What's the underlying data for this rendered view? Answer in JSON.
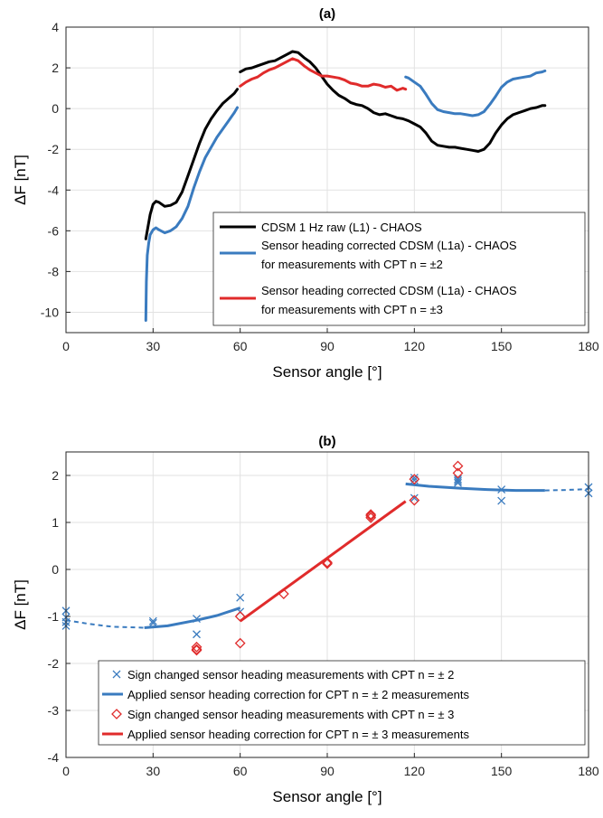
{
  "chart_data": [
    {
      "type": "line",
      "title": "(a)",
      "xlabel": "Sensor angle [°]",
      "ylabel": "ΔF [nT]",
      "xlim": [
        0,
        180
      ],
      "ylim": [
        -11,
        4
      ],
      "xticks": [
        0,
        30,
        60,
        90,
        120,
        150,
        180
      ],
      "yticks": [
        4,
        2,
        0,
        -2,
        -4,
        -6,
        -8,
        -10
      ],
      "grid": true,
      "legend_position": "bottom-right",
      "legend_entries": [
        [
          "CDSM 1 Hz raw (L1) - CHAOS"
        ],
        [
          "Sensor heading corrected CDSM (L1a) - CHAOS",
          "for measurements with CPT n = ±2"
        ],
        [
          "Sensor heading corrected CDSM (L1a) - CHAOS",
          "for measurements with CPT n = ±3"
        ]
      ],
      "series": [
        {
          "color": "#000000",
          "segments": [
            [
              [
                27.5,
                -6.4
              ],
              [
                28,
                -6.0
              ],
              [
                28.5,
                -5.6
              ],
              [
                29,
                -5.2
              ],
              [
                30,
                -4.7
              ],
              [
                31,
                -4.55
              ],
              [
                32,
                -4.6
              ],
              [
                34,
                -4.8
              ],
              [
                36,
                -4.75
              ],
              [
                38,
                -4.6
              ],
              [
                40,
                -4.1
              ],
              [
                42,
                -3.3
              ],
              [
                44,
                -2.5
              ],
              [
                46,
                -1.7
              ],
              [
                48,
                -1.0
              ],
              [
                50,
                -0.5
              ],
              [
                52,
                -0.1
              ],
              [
                54,
                0.25
              ],
              [
                56,
                0.5
              ],
              [
                58,
                0.75
              ],
              [
                59,
                0.95
              ]
            ],
            [
              [
                60,
                1.8
              ],
              [
                62,
                1.95
              ],
              [
                64,
                2.0
              ],
              [
                66,
                2.1
              ],
              [
                68,
                2.2
              ],
              [
                70,
                2.3
              ],
              [
                72,
                2.35
              ],
              [
                74,
                2.5
              ],
              [
                76,
                2.65
              ],
              [
                78,
                2.8
              ],
              [
                80,
                2.75
              ],
              [
                82,
                2.5
              ],
              [
                84,
                2.3
              ],
              [
                86,
                2.0
              ],
              [
                88,
                1.6
              ],
              [
                90,
                1.2
              ],
              [
                92,
                0.9
              ],
              [
                94,
                0.65
              ],
              [
                96,
                0.5
              ],
              [
                98,
                0.3
              ],
              [
                100,
                0.2
              ],
              [
                102,
                0.15
              ],
              [
                104,
                0.0
              ],
              [
                106,
                -0.2
              ],
              [
                108,
                -0.3
              ],
              [
                110,
                -0.25
              ],
              [
                112,
                -0.35
              ],
              [
                114,
                -0.45
              ],
              [
                116,
                -0.5
              ],
              [
                118,
                -0.6
              ],
              [
                120,
                -0.75
              ],
              [
                122,
                -0.9
              ],
              [
                124,
                -1.2
              ],
              [
                126,
                -1.6
              ],
              [
                128,
                -1.8
              ],
              [
                130,
                -1.85
              ],
              [
                132,
                -1.9
              ],
              [
                134,
                -1.9
              ],
              [
                136,
                -1.95
              ],
              [
                138,
                -2.0
              ],
              [
                140,
                -2.05
              ],
              [
                142,
                -2.1
              ],
              [
                144,
                -2.0
              ],
              [
                146,
                -1.7
              ],
              [
                148,
                -1.2
              ],
              [
                150,
                -0.8
              ],
              [
                152,
                -0.5
              ],
              [
                154,
                -0.3
              ],
              [
                156,
                -0.2
              ],
              [
                158,
                -0.1
              ],
              [
                160,
                0.0
              ],
              [
                162,
                0.05
              ],
              [
                164,
                0.15
              ],
              [
                165,
                0.15
              ]
            ]
          ]
        },
        {
          "color": "#3a7bbf",
          "segments": [
            [
              [
                27.5,
                -10.4
              ],
              [
                27.7,
                -8.5
              ],
              [
                28,
                -7.2
              ],
              [
                28.5,
                -6.6
              ],
              [
                29,
                -6.2
              ],
              [
                30,
                -5.95
              ],
              [
                31,
                -5.85
              ],
              [
                32,
                -5.95
              ],
              [
                34,
                -6.1
              ],
              [
                36,
                -6.0
              ],
              [
                38,
                -5.8
              ],
              [
                40,
                -5.4
              ],
              [
                42,
                -4.8
              ],
              [
                44,
                -3.9
              ],
              [
                46,
                -3.1
              ],
              [
                48,
                -2.4
              ],
              [
                50,
                -1.9
              ],
              [
                52,
                -1.4
              ],
              [
                54,
                -1.0
              ],
              [
                56,
                -0.6
              ],
              [
                58,
                -0.2
              ],
              [
                59,
                0.05
              ]
            ],
            [
              [
                117,
                1.55
              ],
              [
                118,
                1.5
              ],
              [
                120,
                1.3
              ],
              [
                122,
                1.1
              ],
              [
                124,
                0.7
              ],
              [
                126,
                0.25
              ],
              [
                128,
                -0.05
              ],
              [
                130,
                -0.15
              ],
              [
                132,
                -0.2
              ],
              [
                134,
                -0.25
              ],
              [
                136,
                -0.25
              ],
              [
                138,
                -0.3
              ],
              [
                140,
                -0.35
              ],
              [
                142,
                -0.3
              ],
              [
                144,
                -0.15
              ],
              [
                146,
                0.2
              ],
              [
                148,
                0.6
              ],
              [
                150,
                1.05
              ],
              [
                152,
                1.3
              ],
              [
                154,
                1.45
              ],
              [
                156,
                1.5
              ],
              [
                158,
                1.55
              ],
              [
                160,
                1.6
              ],
              [
                162,
                1.75
              ],
              [
                164,
                1.8
              ],
              [
                165,
                1.85
              ]
            ]
          ]
        },
        {
          "color": "#e02b2b",
          "segments": [
            [
              [
                60,
                1.1
              ],
              [
                62,
                1.3
              ],
              [
                64,
                1.45
              ],
              [
                66,
                1.55
              ],
              [
                68,
                1.75
              ],
              [
                70,
                1.9
              ],
              [
                72,
                2.0
              ],
              [
                74,
                2.15
              ],
              [
                76,
                2.3
              ],
              [
                78,
                2.45
              ],
              [
                80,
                2.35
              ],
              [
                82,
                2.1
              ],
              [
                84,
                1.9
              ],
              [
                86,
                1.75
              ],
              [
                88,
                1.6
              ],
              [
                90,
                1.6
              ],
              [
                92,
                1.55
              ],
              [
                94,
                1.5
              ],
              [
                96,
                1.4
              ],
              [
                98,
                1.25
              ],
              [
                100,
                1.2
              ],
              [
                102,
                1.1
              ],
              [
                104,
                1.1
              ],
              [
                106,
                1.2
              ],
              [
                108,
                1.15
              ],
              [
                110,
                1.05
              ],
              [
                112,
                1.1
              ],
              [
                114,
                0.9
              ],
              [
                116,
                1.0
              ],
              [
                117,
                0.95
              ]
            ]
          ]
        }
      ]
    },
    {
      "type": "scatter",
      "title": "(b)",
      "xlabel": "Sensor angle [°]",
      "ylabel": "ΔF [nT]",
      "xlim": [
        0,
        180
      ],
      "ylim": [
        -4,
        2.5
      ],
      "xticks": [
        0,
        30,
        60,
        90,
        120,
        150,
        180
      ],
      "yticks": [
        2,
        1,
        0,
        -1,
        -2,
        -3,
        -4
      ],
      "grid": true,
      "legend_position": "bottom-right",
      "legend_entries": [
        "Sign changed sensor heading measurements with CPT n = ± 2",
        "Applied sensor heading correction for CPT n = ± 2 measurements",
        "Sign changed sensor heading measurements with CPT n = ± 3",
        "Applied sensor heading correction for CPT n = ± 3 measurements"
      ],
      "series": [
        {
          "kind": "marker-x",
          "color": "#3a7bbf",
          "points": [
            [
              0,
              -0.88
            ],
            [
              0,
              -1.02
            ],
            [
              0,
              -1.12
            ],
            [
              0,
              -1.2
            ],
            [
              30,
              -1.1
            ],
            [
              30,
              -1.14
            ],
            [
              45,
              -1.05
            ],
            [
              45,
              -1.38
            ],
            [
              60,
              -0.6
            ],
            [
              60,
              -0.9
            ],
            [
              120,
              1.95
            ],
            [
              120,
              1.9
            ],
            [
              120,
              1.52
            ],
            [
              135,
              1.92
            ],
            [
              135,
              1.88
            ],
            [
              135,
              1.84
            ],
            [
              150,
              1.7
            ],
            [
              150,
              1.46
            ],
            [
              180,
              1.75
            ],
            [
              180,
              1.62
            ]
          ]
        },
        {
          "kind": "line",
          "color": "#3a7bbf",
          "solid": [
            [
              [
                27,
                -1.24
              ],
              [
                35,
                -1.2
              ],
              [
                45,
                -1.08
              ],
              [
                52,
                -0.98
              ],
              [
                60,
                -0.82
              ]
            ],
            [
              [
                117,
                1.82
              ],
              [
                125,
                1.77
              ],
              [
                135,
                1.73
              ],
              [
                145,
                1.7
              ],
              [
                155,
                1.68
              ],
              [
                165,
                1.68
              ]
            ]
          ],
          "dashed": [
            [
              [
                0,
                -1.08
              ],
              [
                8,
                -1.16
              ],
              [
                16,
                -1.22
              ],
              [
                27,
                -1.24
              ]
            ],
            [
              [
                165,
                1.68
              ],
              [
                172,
                1.69
              ],
              [
                180,
                1.71
              ]
            ]
          ]
        },
        {
          "kind": "marker-diamond",
          "color": "#e02b2b",
          "points": [
            [
              45,
              -1.65
            ],
            [
              45,
              -1.7
            ],
            [
              45,
              -1.72
            ],
            [
              60,
              -1.0
            ],
            [
              60,
              -1.57
            ],
            [
              75,
              -0.52
            ],
            [
              90,
              0.12
            ],
            [
              90,
              0.15
            ],
            [
              105,
              1.1
            ],
            [
              105,
              1.14
            ],
            [
              105,
              1.17
            ],
            [
              120,
              1.92
            ],
            [
              120,
              1.47
            ],
            [
              135,
              2.2
            ],
            [
              135,
              2.05
            ]
          ]
        },
        {
          "kind": "line",
          "color": "#e02b2b",
          "solid": [
            [
              [
                60,
                -1.1
              ],
              [
                117,
                1.45
              ]
            ]
          ],
          "dashed": []
        }
      ]
    }
  ]
}
